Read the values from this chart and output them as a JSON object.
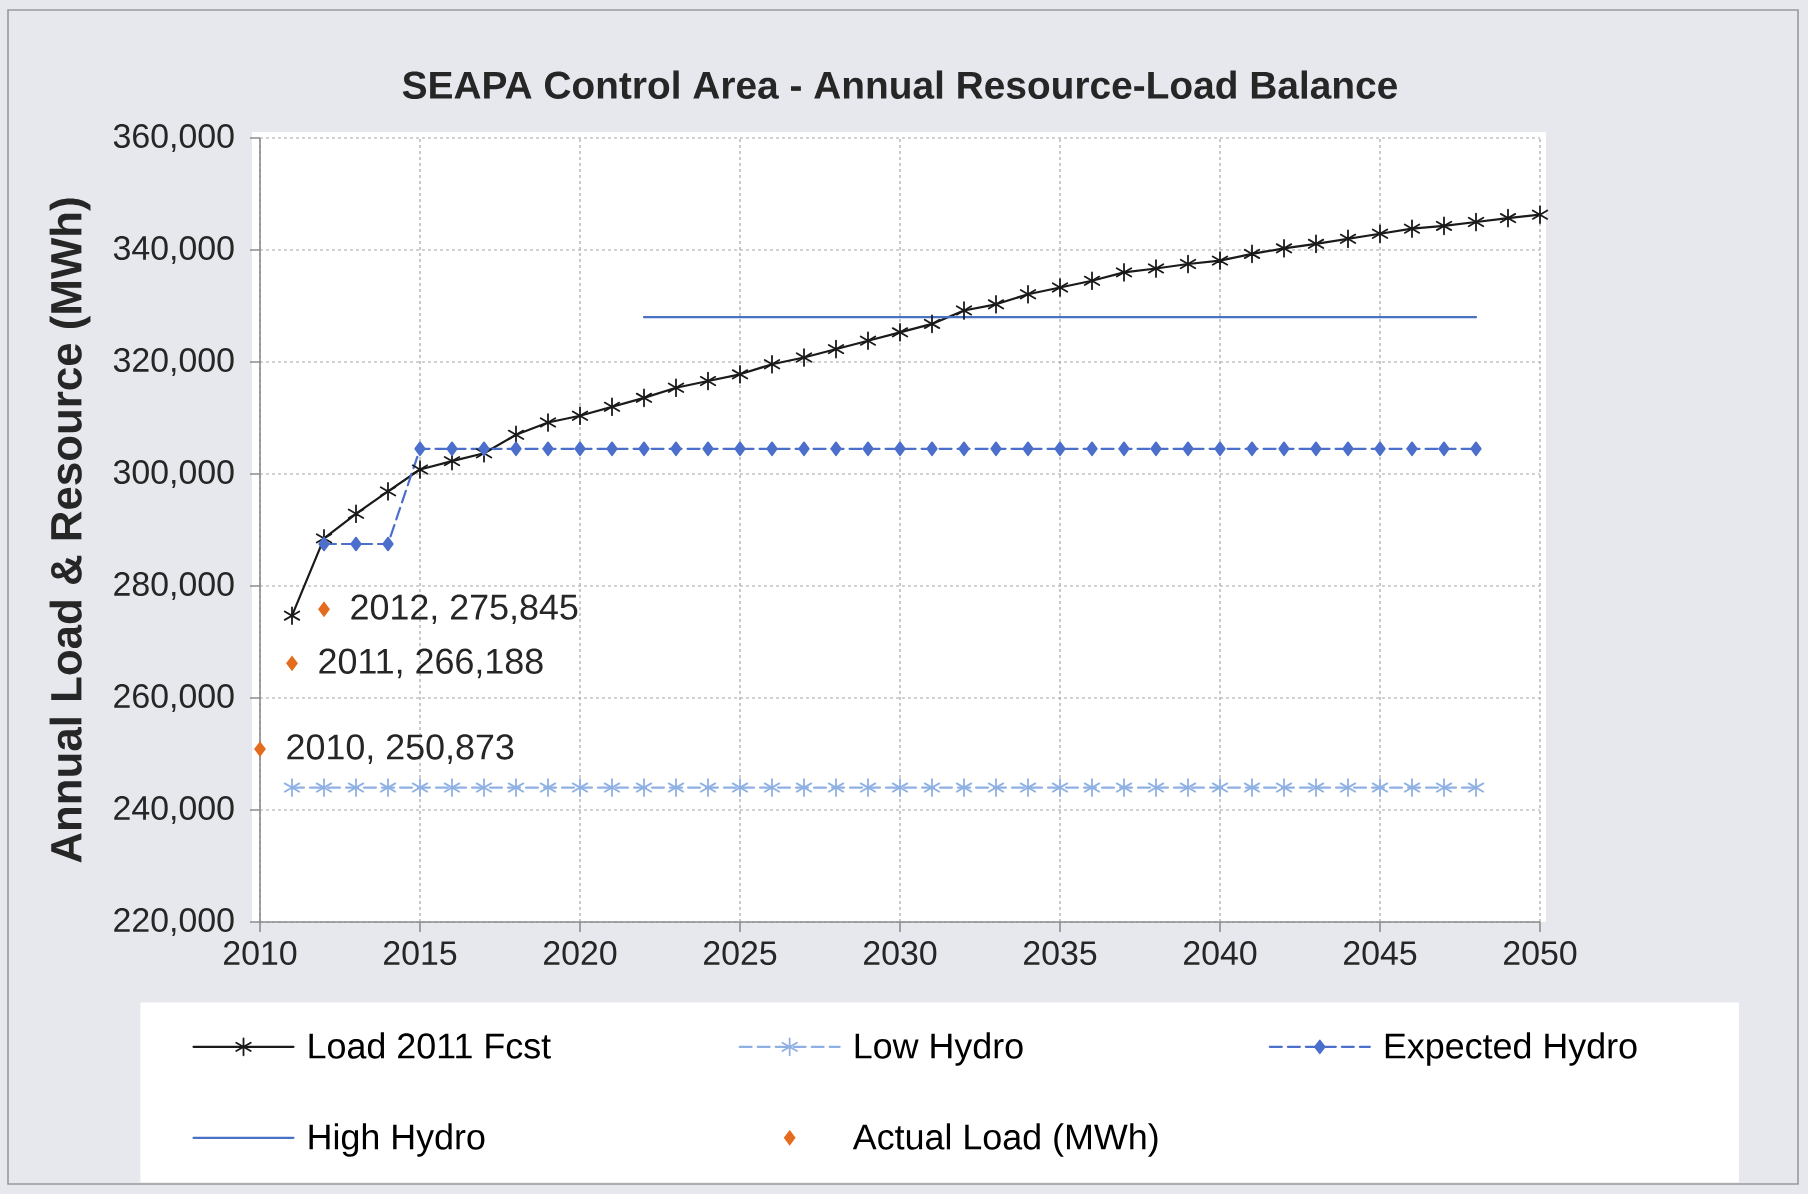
{
  "chart_data": {
    "type": "line",
    "title": "SEAPA Control Area - Annual Resource-Load Balance",
    "ylabel": "Annual Load & Resource (MWh)",
    "xlim": [
      2010,
      2050
    ],
    "xticks": [
      2010,
      2015,
      2020,
      2025,
      2030,
      2035,
      2040,
      2045,
      2050
    ],
    "ylim": [
      220000,
      360000
    ],
    "yticks": [
      {
        "value": 220000,
        "label": "220,000"
      },
      {
        "value": 240000,
        "label": "240,000"
      },
      {
        "value": 260000,
        "label": "260,000"
      },
      {
        "value": 280000,
        "label": "280,000"
      },
      {
        "value": 300000,
        "label": "300,000"
      },
      {
        "value": 320000,
        "label": "320,000"
      },
      {
        "value": 340000,
        "label": "340,000"
      },
      {
        "value": 360000,
        "label": "360,000"
      }
    ],
    "grid": true,
    "legend": "bottom",
    "series": [
      {
        "name": "Load 2011 Fcst",
        "color": "#1a1a1a",
        "marker": "cross",
        "line_style": "solid",
        "x": [
          2011,
          2012,
          2013,
          2014,
          2015,
          2016,
          2017,
          2018,
          2019,
          2020,
          2021,
          2022,
          2023,
          2024,
          2025,
          2026,
          2027,
          2028,
          2029,
          2030,
          2031,
          2032,
          2033,
          2034,
          2035,
          2036,
          2037,
          2038,
          2039,
          2040,
          2041,
          2042,
          2043,
          2044,
          2045,
          2046,
          2047,
          2048,
          2049,
          2050
        ],
        "values": [
          274700,
          288500,
          292900,
          296900,
          300800,
          302300,
          303700,
          307000,
          309200,
          310400,
          312000,
          313600,
          315400,
          316600,
          317800,
          319600,
          320800,
          322300,
          323800,
          325300,
          326800,
          329200,
          330300,
          332100,
          333300,
          334500,
          336000,
          336700,
          337500,
          338100,
          339300,
          340300,
          341100,
          342000,
          342900,
          343800,
          344300,
          345000,
          345700,
          346300
        ]
      },
      {
        "name": "Low Hydro",
        "color": "#8fb0e3",
        "marker": "cross",
        "line_style": "dashed",
        "x": [
          2011,
          2012,
          2013,
          2014,
          2015,
          2016,
          2017,
          2018,
          2019,
          2020,
          2021,
          2022,
          2023,
          2024,
          2025,
          2026,
          2027,
          2028,
          2029,
          2030,
          2031,
          2032,
          2033,
          2034,
          2035,
          2036,
          2037,
          2038,
          2039,
          2040,
          2041,
          2042,
          2043,
          2044,
          2045,
          2046,
          2047,
          2048
        ],
        "values": [
          244000,
          244000,
          244000,
          244000,
          244000,
          244000,
          244000,
          244000,
          244000,
          244000,
          244000,
          244000,
          244000,
          244000,
          244000,
          244000,
          244000,
          244000,
          244000,
          244000,
          244000,
          244000,
          244000,
          244000,
          244000,
          244000,
          244000,
          244000,
          244000,
          244000,
          244000,
          244000,
          244000,
          244000,
          244000,
          244000,
          244000,
          244000
        ]
      },
      {
        "name": "Expected Hydro",
        "color": "#4c6fcc",
        "marker": "diamond",
        "line_style": "dashed",
        "x": [
          2012,
          2013,
          2014,
          2015,
          2016,
          2017,
          2018,
          2019,
          2020,
          2021,
          2022,
          2023,
          2024,
          2025,
          2026,
          2027,
          2028,
          2029,
          2030,
          2031,
          2032,
          2033,
          2034,
          2035,
          2036,
          2037,
          2038,
          2039,
          2040,
          2041,
          2042,
          2043,
          2044,
          2045,
          2046,
          2047,
          2048
        ],
        "values": [
          287500,
          287500,
          287500,
          304500,
          304500,
          304500,
          304500,
          304500,
          304500,
          304500,
          304500,
          304500,
          304500,
          304500,
          304500,
          304500,
          304500,
          304500,
          304500,
          304500,
          304500,
          304500,
          304500,
          304500,
          304500,
          304500,
          304500,
          304500,
          304500,
          304500,
          304500,
          304500,
          304500,
          304500,
          304500,
          304500,
          304500
        ]
      },
      {
        "name": "High Hydro",
        "color": "#4a72c4",
        "marker": "none",
        "line_style": "solid",
        "x": [
          2022,
          2048
        ],
        "values": [
          328000,
          328000
        ]
      },
      {
        "name": "Actual Load (MWh)",
        "type": "scatter",
        "color": "#e46c1e",
        "marker": "diamond",
        "x": [
          2010,
          2011,
          2012
        ],
        "values": [
          250873,
          266188,
          275845
        ],
        "value_labels": [
          "2010, 250,873",
          "2011, 266,188",
          "2012, 275,845"
        ]
      }
    ]
  }
}
